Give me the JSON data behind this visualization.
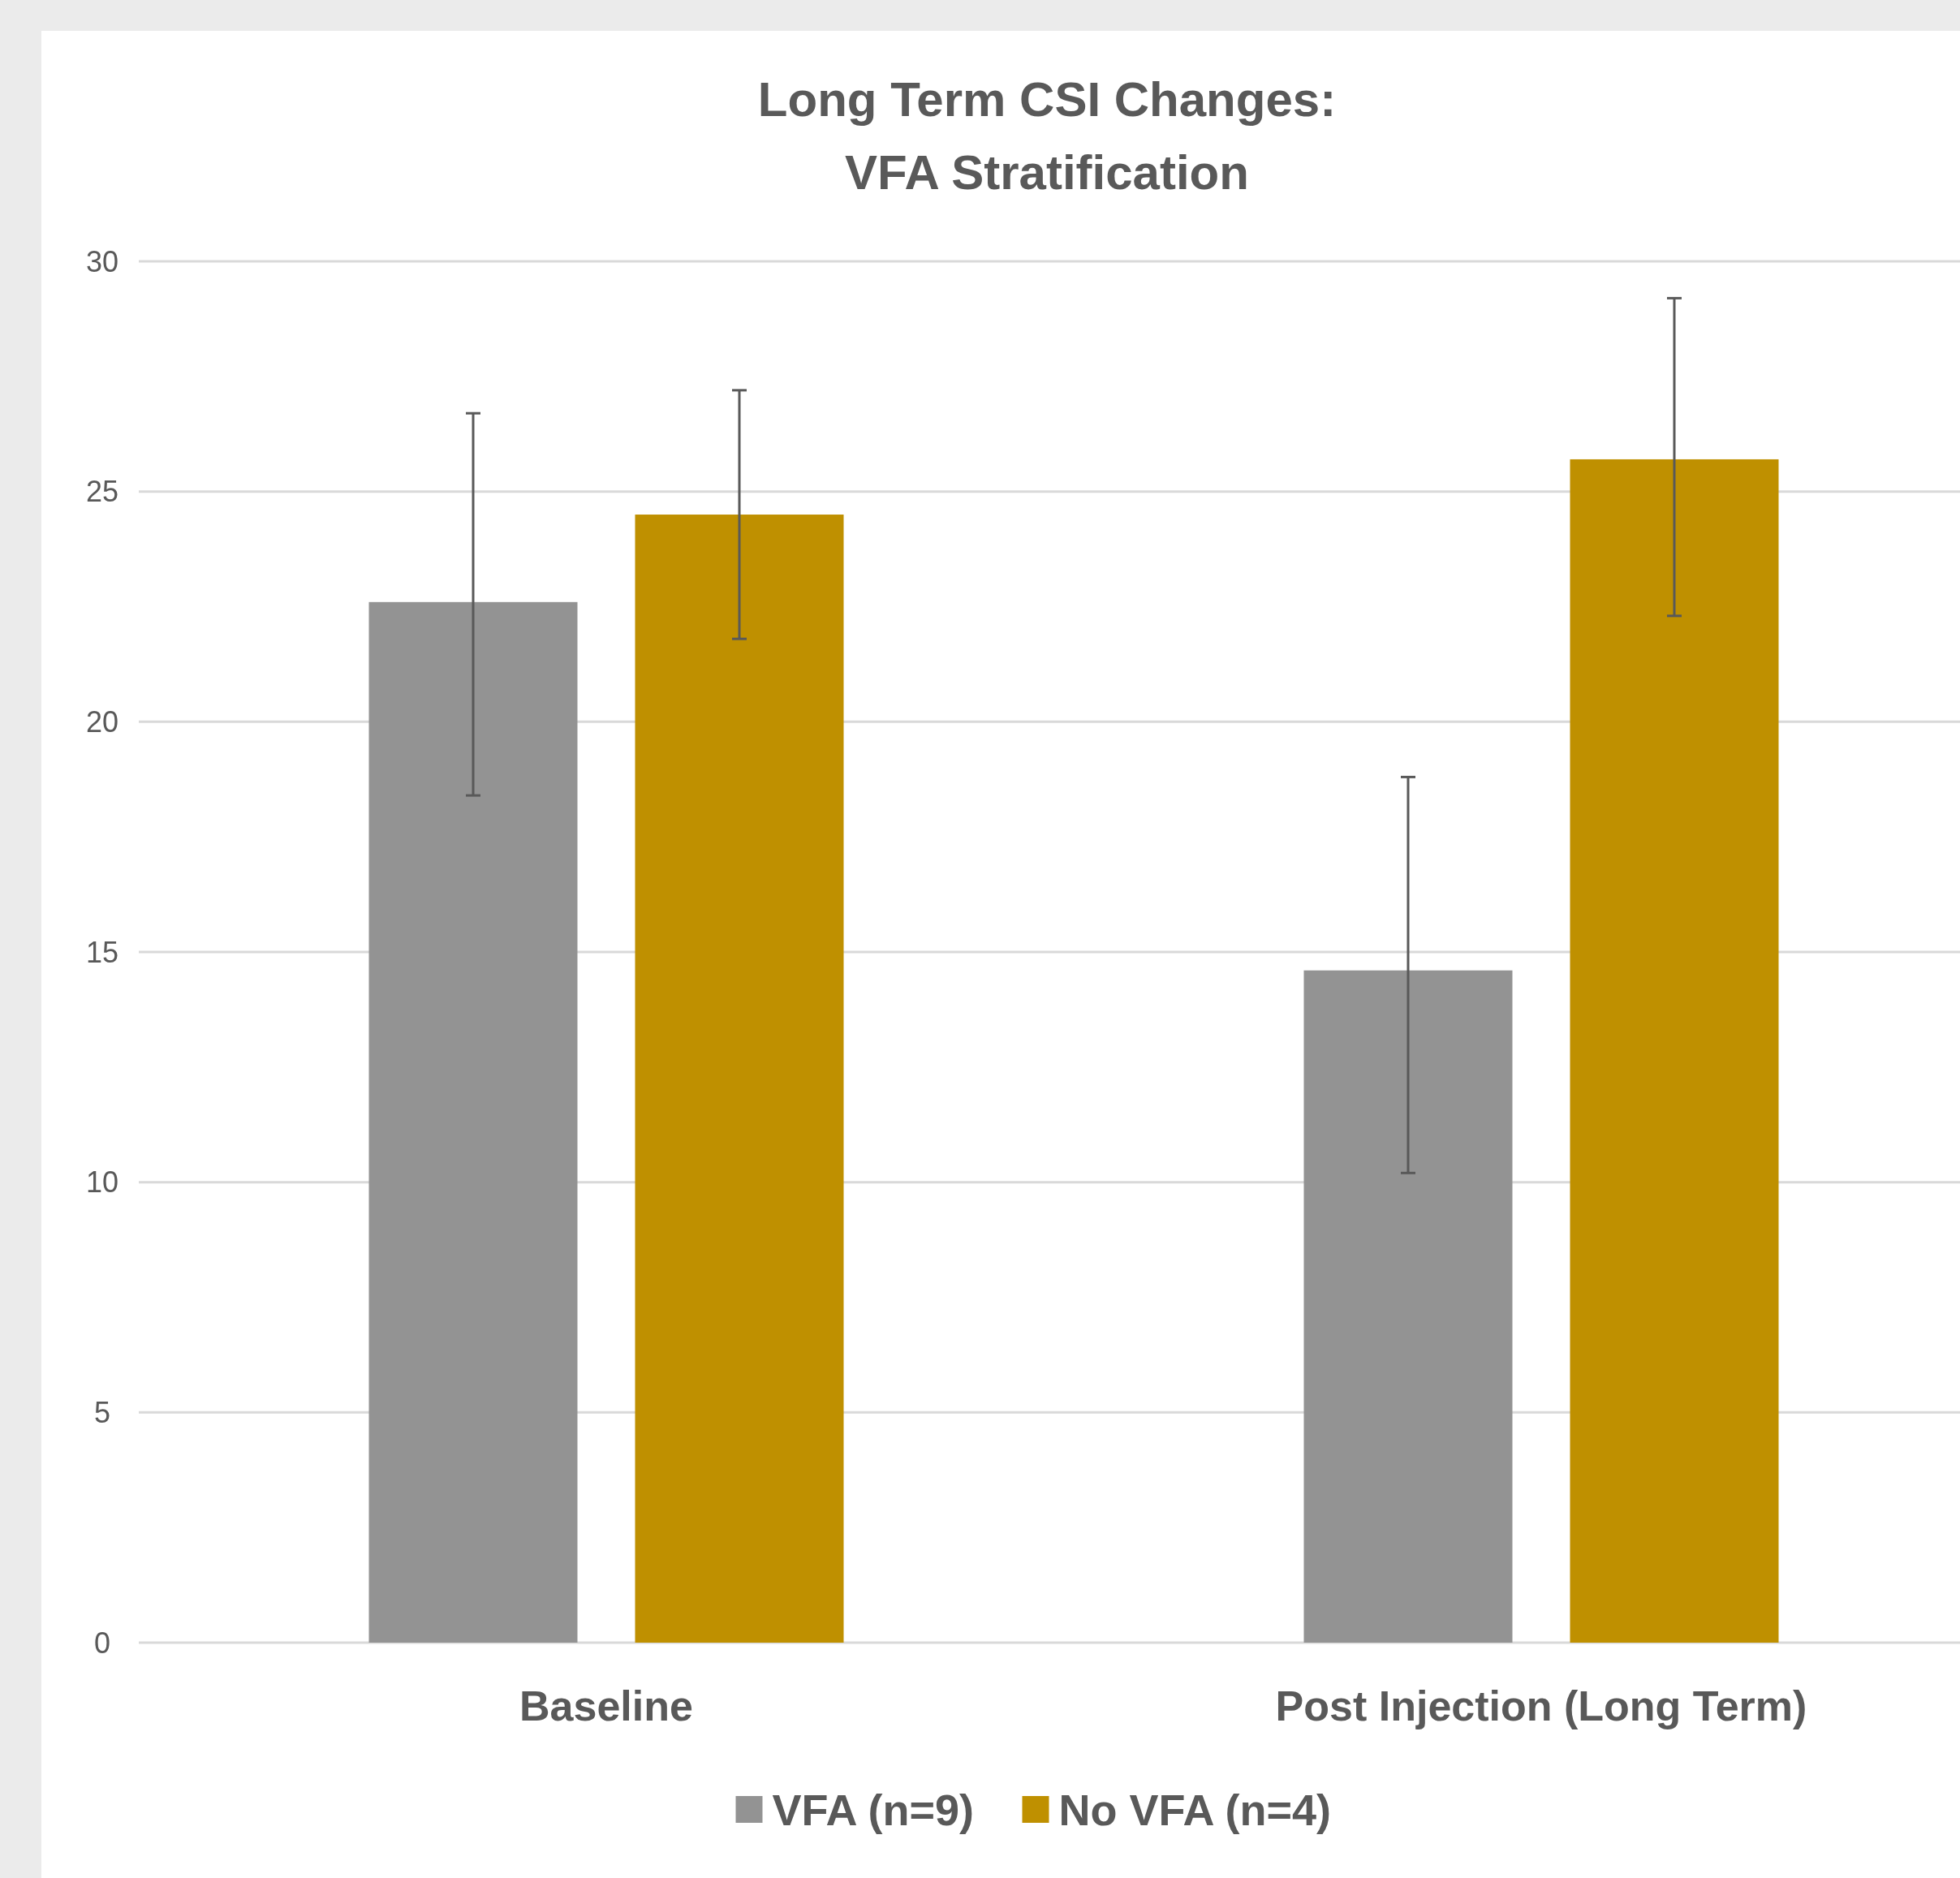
{
  "chart_data": {
    "type": "bar",
    "title": "Long Term CSI Changes:\nVFA Stratification",
    "categories": [
      "Baseline",
      "Post Injection (Long Term)"
    ],
    "series": [
      {
        "name": "VFA (n=9)",
        "color": "#939393",
        "values": [
          22.6,
          14.6
        ],
        "errors": [
          [
            18.4,
            26.7
          ],
          [
            10.2,
            18.8
          ]
        ]
      },
      {
        "name": "No VFA (n=4)",
        "color": "#bf9000",
        "values": [
          24.5,
          25.7
        ],
        "errors": [
          [
            21.8,
            27.2
          ],
          [
            22.3,
            29.2
          ]
        ]
      }
    ],
    "ylim": [
      0,
      30
    ],
    "yticks": [
      0,
      5,
      10,
      15,
      20,
      25,
      30
    ],
    "grid": "y",
    "legend": "bottom"
  }
}
